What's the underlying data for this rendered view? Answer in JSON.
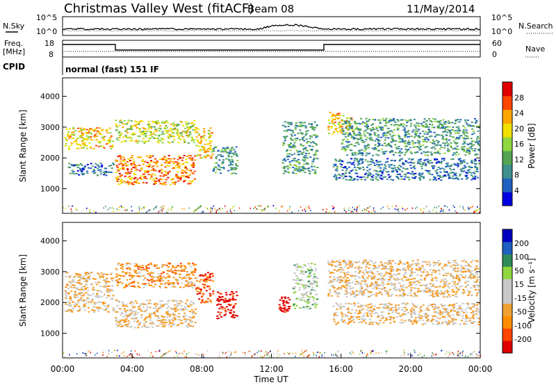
{
  "header": {
    "title": "Christmas Valley West (fitACF)",
    "beam": "Beam 08",
    "date": "11/May/2014"
  },
  "top_panels": {
    "nsky_label": "N.Sky",
    "nsky_ticks": [
      "10^5",
      "10^0"
    ],
    "nsearch_label": "N.Search",
    "nsearch_ticks": [
      "10^5",
      "10^0"
    ],
    "freq_label": "Freq.",
    "freq_unit": "[MHz]",
    "freq_ticks": [
      "18",
      "8"
    ],
    "nave_label": "Nave",
    "nave_ticks": [
      "60",
      "0"
    ],
    "cpid_label": "CPID",
    "cpid_text": "normal (fast) 151 IF"
  },
  "chart_data": [
    {
      "type": "heatmap",
      "name": "power",
      "ylabel": "Slant Range [km]",
      "yticks": [
        "4000",
        "3000",
        "2000",
        "1000"
      ],
      "colorbar_label": "Power [dB]",
      "colorbar_ticks": [
        "28",
        "24",
        "20",
        "16",
        "12",
        "8",
        "4"
      ],
      "colors": [
        "#0000e0",
        "#2060c0",
        "#3f8f8f",
        "#54a454",
        "#8fd63f",
        "#f0e000",
        "#ffa500",
        "#ff4500",
        "#e00000"
      ],
      "regions": [
        {
          "t0": 0.1,
          "t1": 2.9,
          "r0": 2300,
          "r1": 3000,
          "level": 6
        },
        {
          "t0": 0.3,
          "t1": 2.9,
          "r0": 1450,
          "r1": 1850,
          "level": 2
        },
        {
          "t0": 3.0,
          "t1": 7.6,
          "r0": 1150,
          "r1": 2100,
          "level": 7
        },
        {
          "t0": 3.0,
          "t1": 7.6,
          "r0": 2500,
          "r1": 3250,
          "level": 5
        },
        {
          "t0": 7.6,
          "t1": 8.6,
          "r0": 2000,
          "r1": 3000,
          "level": 6
        },
        {
          "t0": 8.6,
          "t1": 10.0,
          "r0": 1500,
          "r1": 2400,
          "level": 3
        },
        {
          "t0": 12.6,
          "t1": 14.6,
          "r0": 1500,
          "r1": 3200,
          "level": 3
        },
        {
          "t0": 15.2,
          "t1": 16.6,
          "r0": 2800,
          "r1": 3500,
          "level": 6
        },
        {
          "t0": 16.0,
          "t1": 23.9,
          "r0": 2100,
          "r1": 3300,
          "level": 3
        },
        {
          "t0": 15.5,
          "t1": 23.9,
          "r0": 1300,
          "r1": 2000,
          "level": 2
        }
      ]
    },
    {
      "type": "heatmap",
      "name": "velocity",
      "ylabel": "Slant Range [km]",
      "yticks": [
        "4000",
        "3000",
        "2000",
        "1000"
      ],
      "xticks": [
        "00:00",
        "04:00",
        "08:00",
        "12:00",
        "16:00",
        "20:00",
        "00:00"
      ],
      "xlabel": "Time UT",
      "colorbar_label": "Velocity [m s⁻¹]",
      "colorbar_ticks": [
        "200",
        "100",
        "50",
        "15",
        "-15",
        "-50",
        "-100",
        "-200"
      ],
      "colors": [
        "#e00000",
        "#ff4500",
        "#ff8c00",
        "#f0a030",
        "#c8c8c8",
        "#c8c8c8",
        "#8fd63f",
        "#2e8b57",
        "#2060c0",
        "#0000c0"
      ],
      "regions": [
        {
          "t0": 0.1,
          "t1": 2.9,
          "r0": 1700,
          "r1": 3000,
          "level": 4
        },
        {
          "t0": 3.0,
          "t1": 7.6,
          "r0": 1200,
          "r1": 2100,
          "level": 4
        },
        {
          "t0": 3.0,
          "t1": 7.6,
          "r0": 2500,
          "r1": 3300,
          "level": 3
        },
        {
          "t0": 7.6,
          "t1": 8.6,
          "r0": 2000,
          "r1": 3000,
          "level": 2
        },
        {
          "t0": 8.8,
          "t1": 10.0,
          "r0": 1500,
          "r1": 2400,
          "level": 0
        },
        {
          "t0": 12.4,
          "t1": 13.0,
          "r0": 1700,
          "r1": 2200,
          "level": 0
        },
        {
          "t0": 13.2,
          "t1": 14.6,
          "r0": 1800,
          "r1": 3300,
          "level": 6
        },
        {
          "t0": 15.2,
          "t1": 23.9,
          "r0": 2200,
          "r1": 3400,
          "level": 4
        },
        {
          "t0": 15.5,
          "t1": 23.9,
          "r0": 1300,
          "r1": 2000,
          "level": 4
        }
      ]
    }
  ]
}
